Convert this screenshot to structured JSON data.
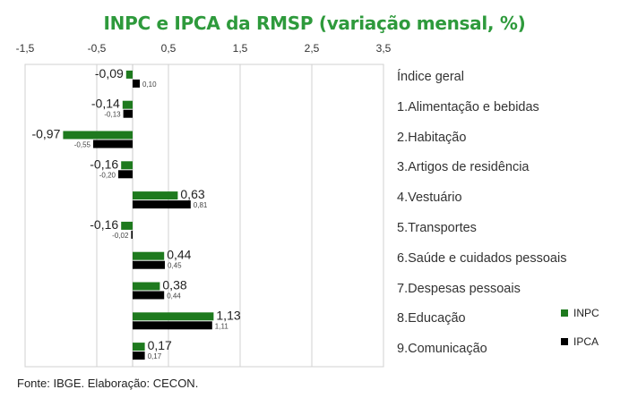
{
  "chart_data": {
    "type": "bar",
    "orientation": "horizontal",
    "title": "INPC e IPCA da RMSP (variação mensal, %)",
    "xlabel": "",
    "ylabel": "",
    "xlim": [
      -1.5,
      3.5
    ],
    "xticks": [
      -1.5,
      -0.5,
      0.5,
      1.5,
      2.5,
      3.5
    ],
    "xtick_labels": [
      "-1,5",
      "-0,5",
      "0,5",
      "1,5",
      "2,5",
      "3,5"
    ],
    "grid": true,
    "legend_position": "bottom-right",
    "categories": [
      "Índice geral",
      "1.Alimentação e bebidas",
      "2.Habitação",
      "3.Artigos de residência",
      "4.Vestuário",
      "5.Transportes",
      "6.Saúde e cuidados pessoais",
      "7.Despesas pessoais",
      "8.Educação",
      "9.Comunicação"
    ],
    "series": [
      {
        "name": "INPC",
        "color": "#1e7a1e",
        "values": [
          -0.09,
          -0.14,
          -0.97,
          -0.16,
          0.63,
          -0.16,
          0.44,
          0.38,
          1.13,
          0.17
        ],
        "labels": [
          "-0,09",
          "-0,14",
          "-0,97",
          "-0,16",
          "0,63",
          "-0,16",
          "0,44",
          "0,38",
          "1,13",
          "0,17"
        ]
      },
      {
        "name": "IPCA",
        "color": "#000000",
        "values": [
          0.1,
          -0.13,
          -0.55,
          -0.2,
          0.81,
          -0.02,
          0.45,
          0.44,
          1.11,
          0.17
        ],
        "labels": [
          "0,10",
          "-0,13",
          "-0,55",
          "-0,20",
          "0,81",
          "-0,02",
          "0,45",
          "0,44",
          "1,11",
          "0,17"
        ]
      }
    ]
  },
  "source": "Fonte: IBGE. Elaboração: CECON."
}
